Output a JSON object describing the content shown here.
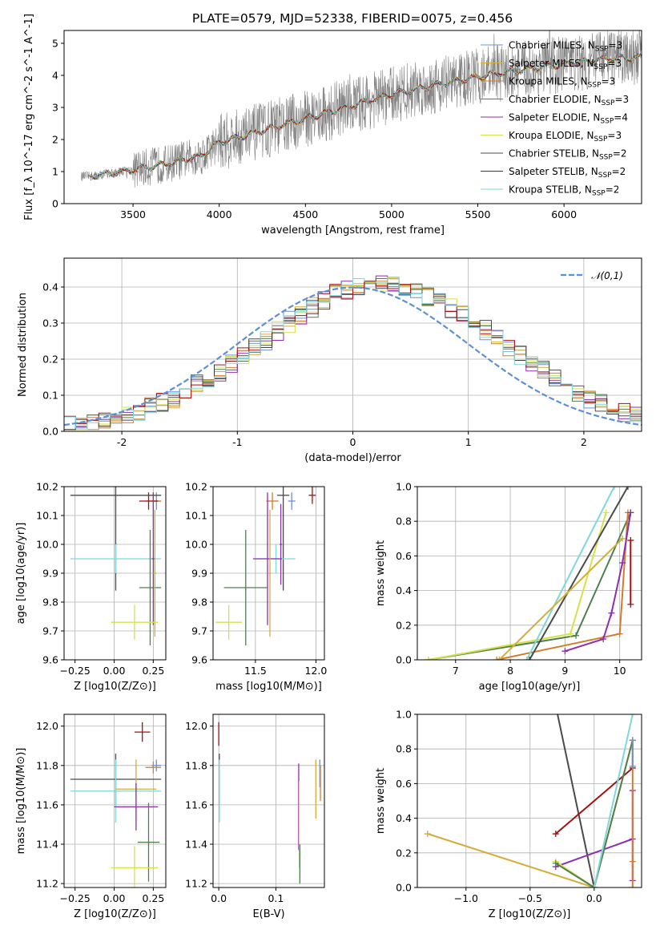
{
  "figure": {
    "title": "PLATE=0579, MJD=52338, FIBERID=0075, z=0.456"
  },
  "models": [
    {
      "name": "Chabrier MILES",
      "nssp": "3",
      "color": "#6a8fd8"
    },
    {
      "name": "Salpeter MILES",
      "nssp": "3",
      "color": "#d4ad3a"
    },
    {
      "name": "Kroupa MILES",
      "nssp": "3",
      "color": "#d27d2d"
    },
    {
      "name": "Chabrier ELODIE",
      "nssp": "3",
      "color": "#4f7f4f"
    },
    {
      "name": "Salpeter ELODIE",
      "nssp": "4",
      "color": "#8e2fae"
    },
    {
      "name": "Kroupa ELODIE",
      "nssp": "3",
      "color": "#d6e14a"
    },
    {
      "name": "Chabrier STELIB",
      "nssp": "2",
      "color": "#4a4a4a"
    },
    {
      "name": "Salpeter STELIB",
      "nssp": "2",
      "color": "#a31111"
    },
    {
      "name": "Kroupa STELIB",
      "nssp": "2",
      "color": "#7fd6dc"
    }
  ],
  "chart_data": [
    {
      "id": "spectrum",
      "type": "line",
      "xlabel": "wavelength [Angstrom, rest frame]",
      "ylabel": "Flux [f_λ 10^-17 erg cm^-2 s^-1 A^-1]",
      "xlim": [
        3100,
        6450
      ],
      "ylim": [
        0,
        5.4
      ],
      "xticks": [
        3500,
        4000,
        4500,
        5000,
        5500,
        6000
      ],
      "yticks": [
        0,
        1,
        2,
        3,
        4,
        5
      ],
      "observed_color": "#808080",
      "model_trend": {
        "x": [
          3250,
          3500,
          3700,
          3900,
          4000,
          4300,
          4500,
          4800,
          5000,
          5300,
          5600,
          6000,
          6300
        ],
        "y": [
          0.85,
          1.05,
          1.25,
          1.5,
          1.9,
          2.35,
          2.65,
          3.1,
          3.4,
          3.75,
          4.05,
          4.35,
          4.55
        ]
      }
    },
    {
      "id": "residuals",
      "type": "histogram",
      "xlabel": "(data-model)/error",
      "ylabel": "Normed distribution",
      "xlim": [
        -2.5,
        2.5
      ],
      "ylim": [
        0,
        0.48
      ],
      "xticks": [
        -2,
        -1,
        0,
        1,
        2
      ],
      "yticks": [
        0.0,
        0.1,
        0.2,
        0.3,
        0.4
      ],
      "legend": "𝒩(0,1)",
      "gaussian_color": "#5b8fd8",
      "bin_width": 0.1
    },
    {
      "id": "age-vs-Z",
      "type": "errorbar",
      "xlabel": "Z [log10(Z/Z⊙)]",
      "ylabel": "age [log10(age/yr)]",
      "xlim": [
        -0.32,
        0.33
      ],
      "ylim": [
        9.6,
        10.2
      ],
      "xticks": [
        -0.25,
        0.0,
        0.25
      ],
      "xticklabels": [
        "−0.25",
        "0.00",
        "0.25"
      ],
      "yticks": [
        9.6,
        9.7,
        9.8,
        9.9,
        10.0,
        10.1,
        10.2
      ],
      "points": [
        {
          "m": 0,
          "x": 0.27,
          "xe": 0.03,
          "y": 10.15,
          "ye": 0.03
        },
        {
          "m": 2,
          "x": 0.25,
          "xe": 0.05,
          "y": 10.15,
          "ye": 0.03
        },
        {
          "m": 7,
          "x": 0.22,
          "xe": 0.06,
          "y": 10.15,
          "ye": 0.03
        },
        {
          "m": 6,
          "x": 0.01,
          "xe": 0.29,
          "y": 10.17,
          "ye": 0.33
        },
        {
          "m": 8,
          "x": 0.01,
          "xe": 0.29,
          "y": 9.95,
          "ye": 0.05
        },
        {
          "m": 4,
          "x": 0.25,
          "xe": 0.01,
          "y": 9.95,
          "ye": 0.23
        },
        {
          "m": 3,
          "x": 0.23,
          "xe": 0.07,
          "y": 9.85,
          "ye": 0.2
        },
        {
          "m": 1,
          "x": 0.26,
          "xe": 0.01,
          "y": 9.9,
          "ye": 0.22
        },
        {
          "m": 5,
          "x": 0.13,
          "xe": 0.15,
          "y": 9.73,
          "ye": 0.06
        }
      ]
    },
    {
      "id": "age-vs-mass",
      "type": "errorbar",
      "xlabel": "mass [log10(M/M⊙)]",
      "ylabel": "",
      "xlim": [
        11.15,
        12.07
      ],
      "ylim": [
        9.6,
        10.2
      ],
      "xticks": [
        11.5,
        12.0
      ],
      "xticklabels": [
        "11.5",
        "12.0"
      ],
      "yticks": [
        9.6,
        9.7,
        9.8,
        9.9,
        10.0,
        10.1,
        10.2
      ],
      "points": [
        {
          "m": 0,
          "x": 11.8,
          "xe": 0.03,
          "y": 10.15,
          "ye": 0.03
        },
        {
          "m": 2,
          "x": 11.64,
          "xe": 0.05,
          "y": 10.15,
          "ye": 0.03
        },
        {
          "m": 7,
          "x": 11.97,
          "xe": 0.03,
          "y": 10.17,
          "ye": 0.03
        },
        {
          "m": 6,
          "x": 11.73,
          "xe": 0.05,
          "y": 10.17,
          "ye": 0.33
        },
        {
          "m": 8,
          "x": 11.67,
          "xe": 0.16,
          "y": 9.95,
          "ye": 0.05
        },
        {
          "m": 4,
          "x": 11.6,
          "xe": 0.12,
          "y": 9.95,
          "ye": 0.23
        },
        {
          "m": 3,
          "x": 11.42,
          "xe": 0.18,
          "y": 9.85,
          "ye": 0.2
        },
        {
          "m": 1,
          "x": 11.62,
          "xe": 0.01,
          "y": 9.9,
          "ye": 0.22
        },
        {
          "m": 5,
          "x": 11.28,
          "xe": 0.11,
          "y": 9.73,
          "ye": 0.06
        },
        {
          "m": 4,
          "x": 11.71,
          "xe": 0.01,
          "y": 10.0,
          "ye": 0.14
        }
      ]
    },
    {
      "id": "massweight-vs-age",
      "type": "line",
      "xlabel": "age [log10(age/yr)]",
      "ylabel": "mass weight",
      "xlim": [
        6.3,
        10.4
      ],
      "ylim": [
        0,
        1
      ],
      "xticks": [
        7,
        8,
        9,
        10
      ],
      "yticks": [
        0.0,
        0.2,
        0.4,
        0.6,
        0.8,
        1.0
      ],
      "lines": [
        {
          "m": 3,
          "x": [
            6.5,
            9.2,
            10.2
          ],
          "y": [
            0.0,
            0.14,
            0.85
          ]
        },
        {
          "m": 5,
          "x": [
            6.5,
            9.1,
            9.75
          ],
          "y": [
            0.0,
            0.15,
            0.85
          ]
        },
        {
          "m": 2,
          "x": [
            7.75,
            10.0,
            10.15
          ],
          "y": [
            0.0,
            0.15,
            0.85
          ]
        },
        {
          "m": 4,
          "x": [
            9.0,
            9.7,
            9.85,
            10.05,
            10.2
          ],
          "y": [
            0.05,
            0.12,
            0.27,
            0.56,
            0.85
          ]
        },
        {
          "m": 7,
          "x": [
            10.2,
            10.2
          ],
          "y": [
            0.32,
            0.69
          ]
        },
        {
          "m": 8,
          "x": [
            8.3,
            9.9
          ],
          "y": [
            0.0,
            1.0
          ]
        },
        {
          "m": 6,
          "x": [
            8.35,
            10.15
          ],
          "y": [
            0.0,
            1.0
          ]
        },
        {
          "m": 1,
          "x": [
            7.8,
            10.05
          ],
          "y": [
            0.0,
            0.7
          ]
        }
      ]
    },
    {
      "id": "mass-vs-Z",
      "type": "errorbar",
      "xlabel": "Z [log10(Z/Z⊙)]",
      "ylabel": "mass [log10(M/M⊙)]",
      "xlim": [
        -0.32,
        0.33
      ],
      "ylim": [
        11.18,
        12.06
      ],
      "xticks": [
        -0.25,
        0.0,
        0.25
      ],
      "xticklabels": [
        "−0.25",
        "0.00",
        "0.25"
      ],
      "yticks": [
        11.2,
        11.4,
        11.6,
        11.8,
        12.0
      ],
      "points": [
        {
          "m": 7,
          "x": 0.18,
          "xe": 0.05,
          "y": 11.97,
          "ye": 0.05
        },
        {
          "m": 0,
          "x": 0.27,
          "xe": 0.03,
          "y": 11.8,
          "ye": 0.03
        },
        {
          "m": 2,
          "x": 0.25,
          "xe": 0.05,
          "y": 11.79,
          "ye": 0.03
        },
        {
          "m": 6,
          "x": 0.01,
          "xe": 0.29,
          "y": 11.73,
          "ye": 0.13
        },
        {
          "m": 8,
          "x": 0.01,
          "xe": 0.29,
          "y": 11.67,
          "ye": 0.16
        },
        {
          "m": 1,
          "x": 0.14,
          "xe": 0.13,
          "y": 11.68,
          "ye": 0.15
        },
        {
          "m": 4,
          "x": 0.14,
          "xe": 0.14,
          "y": 11.59,
          "ye": 0.12
        },
        {
          "m": 3,
          "x": 0.22,
          "xe": 0.07,
          "y": 11.41,
          "ye": 0.2
        },
        {
          "m": 5,
          "x": 0.13,
          "xe": 0.15,
          "y": 11.28,
          "ye": 0.11
        }
      ]
    },
    {
      "id": "mass-vs-ebv",
      "type": "errorbar",
      "xlabel": "E(B-V)",
      "ylabel": "",
      "xlim": [
        -0.01,
        0.185
      ],
      "ylim": [
        11.18,
        12.06
      ],
      "xticks": [
        0.0,
        0.1
      ],
      "xticklabels": [
        "0.0",
        "0.1"
      ],
      "yticks": [
        11.2,
        11.4,
        11.6,
        11.8,
        12.0
      ],
      "points": [
        {
          "m": 7,
          "x": 0.0,
          "xe": 0.0,
          "y": 11.96,
          "ye": 0.06
        },
        {
          "m": 6,
          "x": 0.001,
          "xe": 0.0,
          "y": 11.73,
          "ye": 0.13
        },
        {
          "m": 8,
          "x": 0.001,
          "xe": 0.0,
          "y": 11.67,
          "ye": 0.16
        },
        {
          "m": 0,
          "x": 0.177,
          "xe": 0.0,
          "y": 11.76,
          "ye": 0.07
        },
        {
          "m": 2,
          "x": 0.178,
          "xe": 0.0,
          "y": 11.71,
          "ye": 0.09
        },
        {
          "m": 4,
          "x": 0.14,
          "xe": 0.0,
          "y": 11.59,
          "ye": 0.22
        },
        {
          "m": 1,
          "x": 0.17,
          "xe": 0.0,
          "y": 11.68,
          "ye": 0.15
        },
        {
          "m": 5,
          "x": 0.141,
          "xe": 0.0,
          "y": 11.5,
          "ye": 0.22
        },
        {
          "m": 3,
          "x": 0.142,
          "xe": 0.0,
          "y": 11.3,
          "ye": 0.1
        }
      ]
    },
    {
      "id": "massweight-vs-Z",
      "type": "line",
      "xlabel": "Z [log10(Z/Z⊙)]",
      "ylabel": "mass weight",
      "xlim": [
        -1.38,
        0.37
      ],
      "ylim": [
        0,
        1
      ],
      "xticks": [
        -1.0,
        -0.5,
        0.0
      ],
      "xticklabels": [
        "−1.0",
        "−0.5",
        "0.0"
      ],
      "yticks": [
        0.0,
        0.2,
        0.4,
        0.6,
        0.8,
        1.0
      ],
      "lines": [
        {
          "m": 6,
          "x": [
            -0.3,
            0.0
          ],
          "y": [
            1.05,
            0.0
          ]
        },
        {
          "m": 1,
          "x": [
            -1.3,
            0.0,
            0.3
          ],
          "y": [
            0.31,
            0.0,
            0.85
          ]
        },
        {
          "m": 7,
          "x": [
            -0.3,
            0.3
          ],
          "y": [
            0.31,
            0.69
          ]
        },
        {
          "m": 4,
          "x": [
            -0.3,
            0.3,
            0.3,
            0.3
          ],
          "y": [
            0.12,
            0.28,
            0.56,
            0.04
          ]
        },
        {
          "m": 5,
          "x": [
            -0.3,
            0.0,
            0.3
          ],
          "y": [
            0.15,
            0.0,
            0.85
          ]
        },
        {
          "m": 3,
          "x": [
            -0.3,
            0.0,
            0.3
          ],
          "y": [
            0.14,
            0.0,
            0.85
          ]
        },
        {
          "m": 2,
          "x": [
            0.3,
            0.3,
            0.3
          ],
          "y": [
            0.15,
            0.85,
            0.0
          ]
        },
        {
          "m": 8,
          "x": [
            0.0,
            0.3
          ],
          "y": [
            0.0,
            1.0
          ]
        },
        {
          "m": 0,
          "x": [
            0.3,
            0.3
          ],
          "y": [
            0.7,
            0.85
          ]
        }
      ]
    }
  ]
}
